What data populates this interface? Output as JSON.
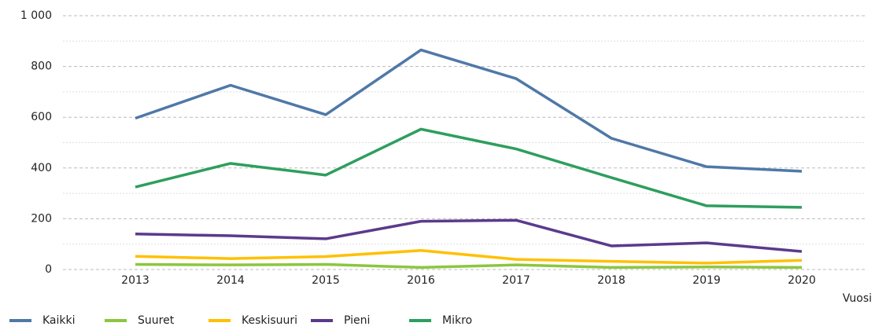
{
  "chart_data": {
    "type": "line",
    "x_label": "Vuosi",
    "categories": [
      "2013",
      "2014",
      "2015",
      "2016",
      "2017",
      "2018",
      "2019",
      "2020"
    ],
    "series": [
      {
        "name": "Kaikki",
        "color": "#4f78a8",
        "values": [
          596,
          726,
          610,
          865,
          752,
          517,
          405,
          387
        ]
      },
      {
        "name": "Suuret",
        "color": "#8cc63f",
        "values": [
          20,
          18,
          20,
          8,
          18,
          8,
          10,
          8
        ]
      },
      {
        "name": "Keskisuuri",
        "color": "#ffc000",
        "values": [
          52,
          43,
          51,
          75,
          40,
          32,
          25,
          36
        ]
      },
      {
        "name": "Pieni",
        "color": "#5b3a8c",
        "values": [
          140,
          133,
          121,
          190,
          194,
          93,
          105,
          71
        ]
      },
      {
        "name": "Mikro",
        "color": "#2e9e5e",
        "values": [
          325,
          418,
          372,
          553,
          475,
          362,
          251,
          245
        ]
      }
    ],
    "ylim": [
      0,
      1000
    ],
    "yticks": [
      0,
      200,
      400,
      600,
      800,
      {
        "value": 1000,
        "label": "1 000"
      }
    ],
    "grid": true,
    "legend": "bottom"
  }
}
